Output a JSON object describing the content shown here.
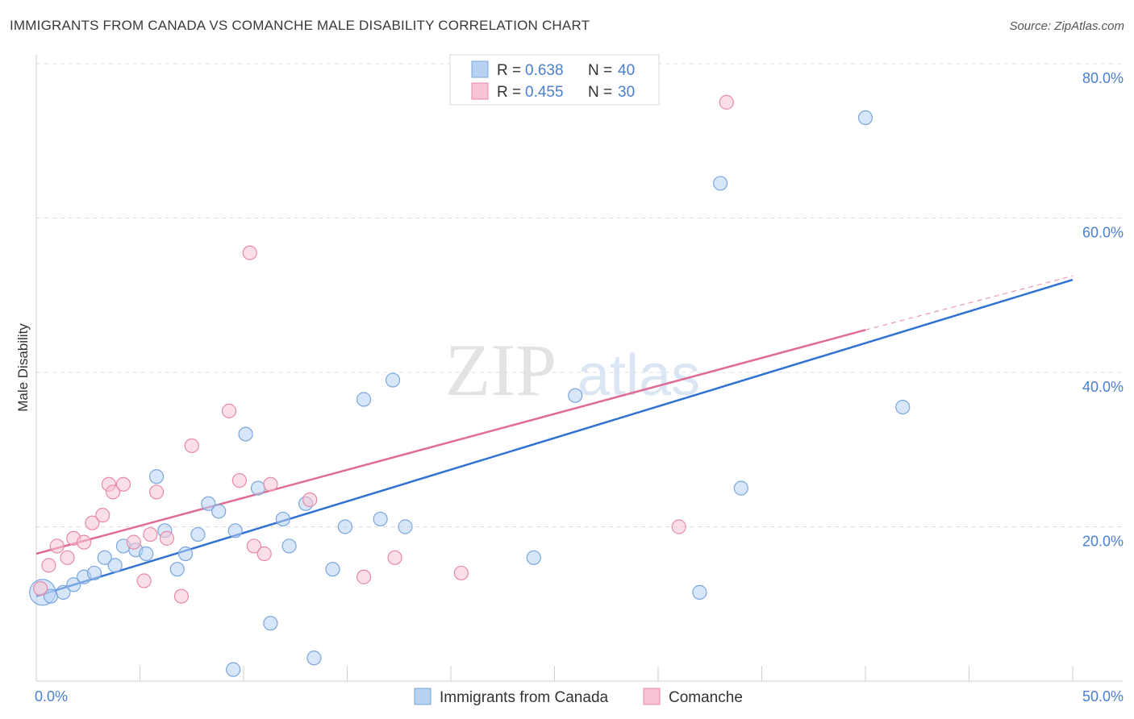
{
  "title": "IMMIGRANTS FROM CANADA VS COMANCHE MALE DISABILITY CORRELATION CHART",
  "source": "Source: ZipAtlas.com",
  "watermark": {
    "zip": "ZIP",
    "atlas": "atlas"
  },
  "colors": {
    "blue_fill": "#b7d1f2",
    "blue_stroke": "#7aa6de",
    "blue_line": "#2f72d1",
    "pink_fill": "#f8c4d3",
    "pink_stroke": "#e68aa7",
    "pink_line": "#e06b94",
    "tick_text": "#4a7ed0",
    "grid": "#dcdcdc"
  },
  "legend": {
    "r_label": "R =",
    "n_label": "N =",
    "rows": [
      {
        "r": "0.638",
        "n": "40",
        "color": "blue"
      },
      {
        "r": "0.455",
        "n": "30",
        "color": "pink"
      }
    ]
  },
  "chart_data": {
    "type": "scatter",
    "title": "IMMIGRANTS FROM CANADA VS COMANCHE MALE DISABILITY CORRELATION CHART",
    "xlabel": "",
    "ylabel": "Male Disability",
    "xlim": [
      0,
      50
    ],
    "ylim": [
      0,
      80
    ],
    "x_tick_labels": [
      "0.0%",
      "50.0%"
    ],
    "y_ticks": [
      20,
      40,
      60,
      80
    ],
    "y_tick_labels": [
      "20.0%",
      "40.0%",
      "60.0%",
      "80.0%"
    ],
    "grid": "horizontal dashed",
    "legend_position": "top-center",
    "series": [
      {
        "name": "Immigrants from Canada",
        "color": "blue",
        "trend": {
          "x0": 0,
          "y0": 11.0,
          "x1": 50,
          "y1": 52.0
        },
        "points": [
          {
            "x": 0.3,
            "y": 11.5,
            "big": true
          },
          {
            "x": 0.7,
            "y": 11.0
          },
          {
            "x": 1.3,
            "y": 11.5
          },
          {
            "x": 1.8,
            "y": 12.5
          },
          {
            "x": 2.3,
            "y": 13.5
          },
          {
            "x": 2.8,
            "y": 14.0
          },
          {
            "x": 3.3,
            "y": 16.0
          },
          {
            "x": 3.8,
            "y": 15.0
          },
          {
            "x": 4.2,
            "y": 17.5
          },
          {
            "x": 4.8,
            "y": 17.0
          },
          {
            "x": 5.3,
            "y": 16.5
          },
          {
            "x": 5.8,
            "y": 26.5
          },
          {
            "x": 6.2,
            "y": 19.5
          },
          {
            "x": 6.8,
            "y": 14.5
          },
          {
            "x": 7.2,
            "y": 16.5
          },
          {
            "x": 7.8,
            "y": 19.0
          },
          {
            "x": 8.3,
            "y": 23.0
          },
          {
            "x": 8.8,
            "y": 22.0
          },
          {
            "x": 9.6,
            "y": 19.5
          },
          {
            "x": 10.1,
            "y": 32.0
          },
          {
            "x": 10.7,
            "y": 25.0
          },
          {
            "x": 11.3,
            "y": 7.5
          },
          {
            "x": 11.9,
            "y": 21.0
          },
          {
            "x": 12.2,
            "y": 17.5
          },
          {
            "x": 13.0,
            "y": 23.0
          },
          {
            "x": 13.4,
            "y": 3.0
          },
          {
            "x": 14.3,
            "y": 14.5
          },
          {
            "x": 14.9,
            "y": 20.0
          },
          {
            "x": 15.8,
            "y": 36.5
          },
          {
            "x": 16.6,
            "y": 21.0
          },
          {
            "x": 17.2,
            "y": 39.0
          },
          {
            "x": 17.8,
            "y": 20.0
          },
          {
            "x": 9.5,
            "y": 1.5
          },
          {
            "x": 26.0,
            "y": 37.0
          },
          {
            "x": 24.0,
            "y": 16.0
          },
          {
            "x": 32.0,
            "y": 11.5
          },
          {
            "x": 33.0,
            "y": 64.5
          },
          {
            "x": 34.0,
            "y": 25.0
          },
          {
            "x": 40.0,
            "y": 73.0
          },
          {
            "x": 41.8,
            "y": 35.5
          }
        ]
      },
      {
        "name": "Comanche",
        "color": "pink",
        "trend": {
          "x0": 0,
          "y0": 16.5,
          "x1": 40,
          "y1": 45.5,
          "dash_to_x": 50,
          "dash_to_y": 52.5
        },
        "points": [
          {
            "x": 0.2,
            "y": 12.0
          },
          {
            "x": 0.6,
            "y": 15.0
          },
          {
            "x": 1.0,
            "y": 17.5
          },
          {
            "x": 1.5,
            "y": 16.0
          },
          {
            "x": 1.8,
            "y": 18.5
          },
          {
            "x": 2.3,
            "y": 18.0
          },
          {
            "x": 2.7,
            "y": 20.5
          },
          {
            "x": 3.2,
            "y": 21.5
          },
          {
            "x": 3.5,
            "y": 25.5
          },
          {
            "x": 3.7,
            "y": 24.5
          },
          {
            "x": 4.2,
            "y": 25.5
          },
          {
            "x": 4.7,
            "y": 18.0
          },
          {
            "x": 5.2,
            "y": 13.0
          },
          {
            "x": 5.5,
            "y": 19.0
          },
          {
            "x": 5.8,
            "y": 24.5
          },
          {
            "x": 6.3,
            "y": 18.5
          },
          {
            "x": 7.0,
            "y": 11.0
          },
          {
            "x": 7.5,
            "y": 30.5
          },
          {
            "x": 9.3,
            "y": 35.0
          },
          {
            "x": 9.8,
            "y": 26.0
          },
          {
            "x": 10.3,
            "y": 55.5
          },
          {
            "x": 10.5,
            "y": 17.5
          },
          {
            "x": 11.0,
            "y": 16.5
          },
          {
            "x": 11.3,
            "y": 25.5
          },
          {
            "x": 13.2,
            "y": 23.5
          },
          {
            "x": 15.8,
            "y": 13.5
          },
          {
            "x": 17.3,
            "y": 16.0
          },
          {
            "x": 20.5,
            "y": 14.0
          },
          {
            "x": 31.0,
            "y": 20.0
          },
          {
            "x": 33.3,
            "y": 75.0
          }
        ]
      }
    ]
  }
}
